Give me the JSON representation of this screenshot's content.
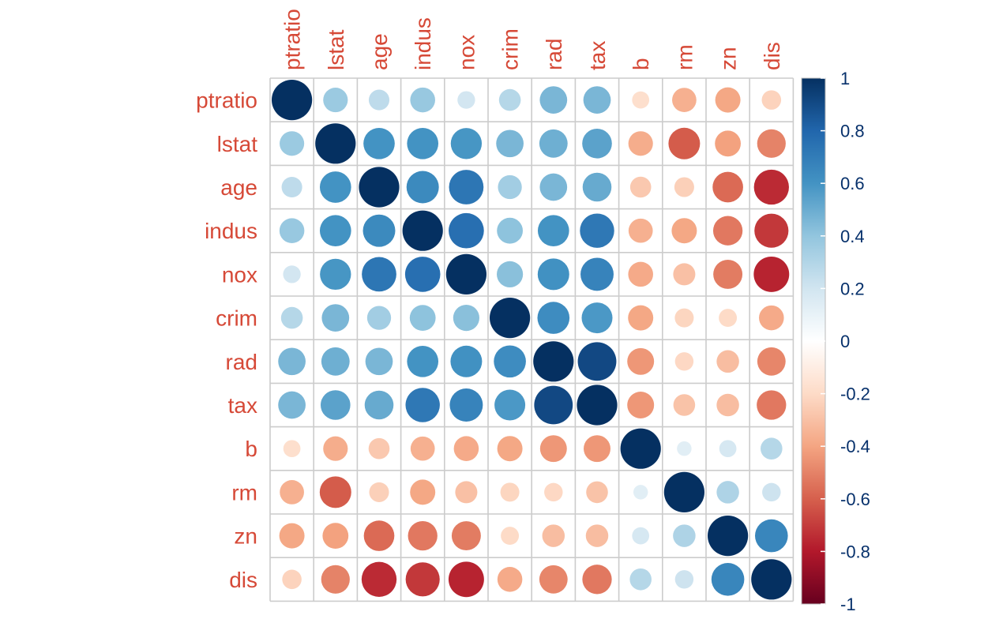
{
  "chart_data": {
    "type": "heatmap",
    "style": "correlation-circles",
    "variables": [
      "ptratio",
      "lstat",
      "age",
      "indus",
      "nox",
      "crim",
      "rad",
      "tax",
      "b",
      "rm",
      "zn",
      "dis"
    ],
    "matrix": [
      [
        1.0,
        0.37,
        0.26,
        0.38,
        0.19,
        0.29,
        0.46,
        0.46,
        -0.18,
        -0.36,
        -0.39,
        -0.23
      ],
      [
        0.37,
        1.0,
        0.6,
        0.6,
        0.59,
        0.46,
        0.49,
        0.54,
        -0.37,
        -0.61,
        -0.41,
        -0.5
      ],
      [
        0.26,
        0.6,
        1.0,
        0.64,
        0.73,
        0.35,
        0.46,
        0.51,
        -0.27,
        -0.24,
        -0.57,
        -0.75
      ],
      [
        0.38,
        0.6,
        0.64,
        1.0,
        0.76,
        0.41,
        0.6,
        0.72,
        -0.36,
        -0.39,
        -0.53,
        -0.71
      ],
      [
        0.19,
        0.59,
        0.73,
        0.76,
        1.0,
        0.42,
        0.61,
        0.67,
        -0.38,
        -0.3,
        -0.52,
        -0.77
      ],
      [
        0.29,
        0.46,
        0.35,
        0.41,
        0.42,
        1.0,
        0.63,
        0.58,
        -0.39,
        -0.22,
        -0.2,
        -0.38
      ],
      [
        0.46,
        0.49,
        0.46,
        0.6,
        0.61,
        0.63,
        1.0,
        0.91,
        -0.44,
        -0.21,
        -0.31,
        -0.49
      ],
      [
        0.46,
        0.54,
        0.51,
        0.72,
        0.67,
        0.58,
        0.91,
        1.0,
        -0.44,
        -0.29,
        -0.31,
        -0.53
      ],
      [
        -0.18,
        -0.37,
        -0.27,
        -0.36,
        -0.38,
        -0.39,
        -0.44,
        -0.44,
        1.0,
        0.13,
        0.18,
        0.29
      ],
      [
        -0.36,
        -0.61,
        -0.24,
        -0.39,
        -0.3,
        -0.22,
        -0.21,
        -0.29,
        0.13,
        1.0,
        0.31,
        0.21
      ],
      [
        -0.39,
        -0.41,
        -0.57,
        -0.53,
        -0.52,
        -0.2,
        -0.31,
        -0.31,
        0.18,
        0.31,
        1.0,
        0.66
      ],
      [
        -0.23,
        -0.5,
        -0.75,
        -0.71,
        -0.77,
        -0.38,
        -0.49,
        -0.53,
        0.29,
        0.21,
        0.66,
        1.0
      ]
    ],
    "legend": {
      "placement": "right",
      "ticks": [
        "1",
        "0.8",
        "0.6",
        "0.4",
        "0.2",
        "0",
        "-0.2",
        "-0.4",
        "-0.6",
        "-0.8",
        "-1"
      ],
      "tick_values": [
        1,
        0.8,
        0.6,
        0.4,
        0.2,
        0,
        -0.2,
        -0.4,
        -0.6,
        -0.8,
        -1
      ]
    },
    "value_range": [
      -1,
      1
    ],
    "label_color": "#d64937",
    "tick_color": "#06306b",
    "grid_color": "#cccccc",
    "color_scale": [
      {
        "v": -1.0,
        "c": "#67001f"
      },
      {
        "v": -0.8,
        "c": "#b2182b"
      },
      {
        "v": -0.6,
        "c": "#d6604d"
      },
      {
        "v": -0.4,
        "c": "#f4a582"
      },
      {
        "v": -0.2,
        "c": "#fddbc7"
      },
      {
        "v": 0.0,
        "c": "#ffffff"
      },
      {
        "v": 0.2,
        "c": "#d1e5f0"
      },
      {
        "v": 0.4,
        "c": "#92c5de"
      },
      {
        "v": 0.6,
        "c": "#4393c3"
      },
      {
        "v": 0.8,
        "c": "#2166ac"
      },
      {
        "v": 1.0,
        "c": "#053061"
      }
    ]
  }
}
